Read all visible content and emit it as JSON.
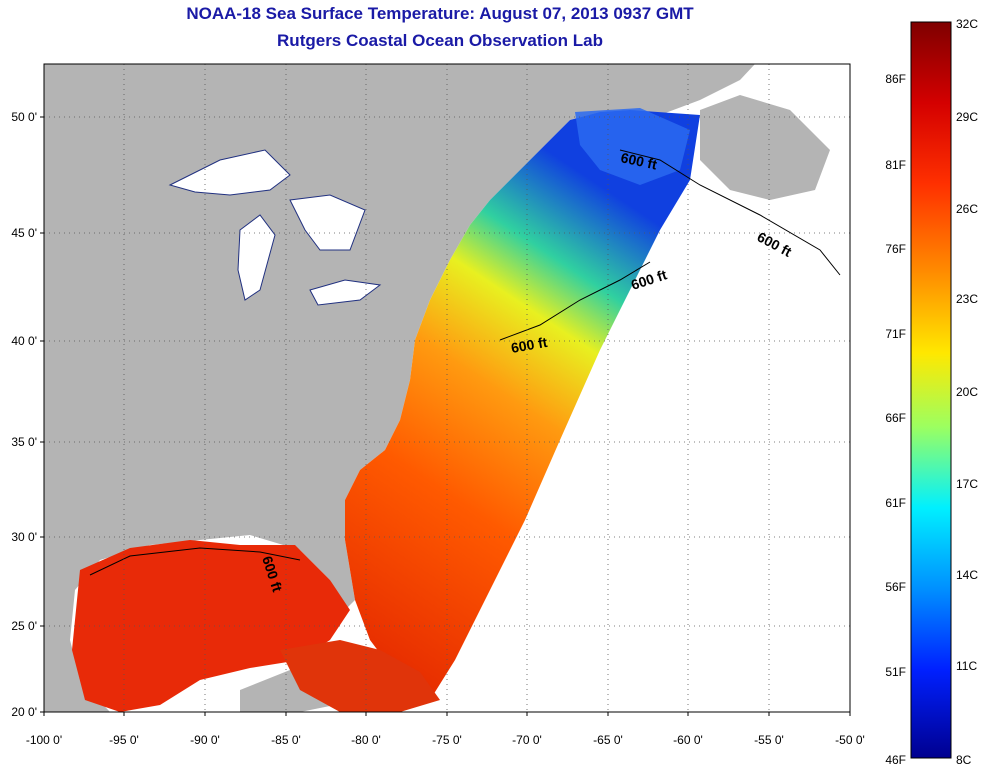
{
  "title": {
    "line1": "NOAA-18 Sea Surface Temperature:  August 07, 2013 0937 GMT",
    "line2": "Rutgers Coastal Ocean Observation Lab"
  },
  "map": {
    "lon_ticks": [
      "-100 0'",
      "-95 0'",
      "-90 0'",
      "-85 0'",
      "-80 0'",
      "-75 0'",
      "-70 0'",
      "-65 0'",
      "-60 0'",
      "-55 0'",
      "-50 0'"
    ],
    "lat_ticks": [
      "50 0'",
      "45 0'",
      "40 0'",
      "35 0'",
      "30 0'",
      "25 0'",
      "20 0'"
    ],
    "contour_label": "600 ft",
    "colors": {
      "land": "#b4b4b4",
      "no_data": "#ffffff",
      "frame": "#000000"
    }
  },
  "colorbar": {
    "celsius": [
      "32C",
      "29C",
      "26C",
      "23C",
      "20C",
      "17C",
      "14C",
      "11C",
      "8C"
    ],
    "fahrenheit": [
      "86F",
      "81F",
      "76F",
      "71F",
      "66F",
      "61F",
      "56F",
      "51F",
      "46F"
    ],
    "colors": [
      "#7f0000",
      "#ff0000",
      "#ff8000",
      "#ffff00",
      "#80ff80",
      "#00ffff",
      "#0080ff",
      "#0000ff",
      "#00008f"
    ]
  }
}
